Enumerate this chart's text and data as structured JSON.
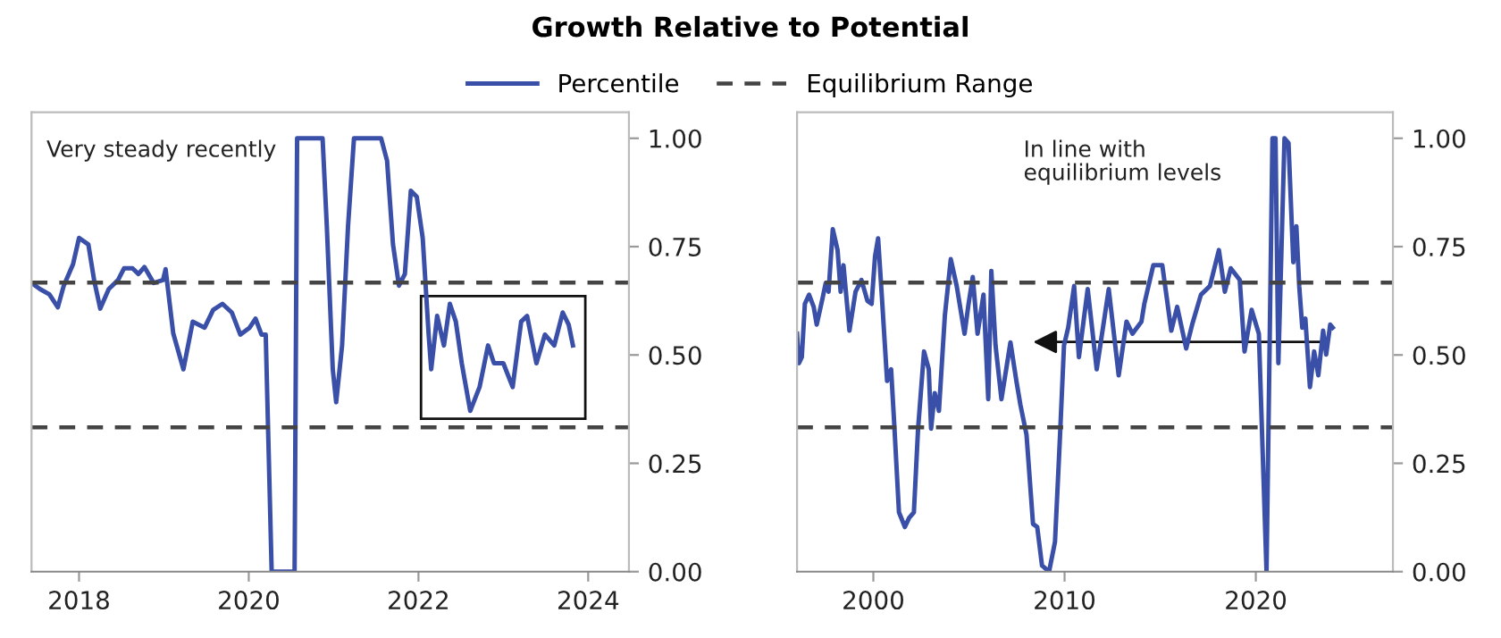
{
  "chart_data": [
    {
      "type": "line",
      "title": "Growth Relative to Potential",
      "legend": "top",
      "grid": false,
      "line_style": "solid",
      "marker": "none",
      "xlim": [
        2017.44,
        2024.48
      ],
      "xticks": [
        2018,
        2020,
        2022,
        2024
      ],
      "ylim": [
        0,
        1.06
      ],
      "yticks": [
        {
          "value": 0,
          "label": "0.00"
        },
        {
          "value": 0.25,
          "label": "0.25"
        },
        {
          "value": 0.5,
          "label": "0.50"
        },
        {
          "value": 0.75,
          "label": "0.75"
        },
        {
          "value": 1,
          "label": "1.00"
        }
      ],
      "annotations": [
        "Very steady recently"
      ],
      "ref_lines": [
        {
          "axis": "y",
          "value": 0.667,
          "label": "Equilibrium Range",
          "color": "#444444",
          "line_style": "dashed"
        },
        {
          "axis": "y",
          "value": 0.333,
          "color": "#444444",
          "line_style": "dashed"
        }
      ],
      "series": [
        {
          "name": "Percentile",
          "color": "#3a4fa8",
          "x": [
            2017.44,
            2017.54,
            2017.65,
            2017.75,
            2017.82,
            2017.93,
            2018.0,
            2018.11,
            2018.18,
            2018.25,
            2018.35,
            2018.46,
            2018.53,
            2018.63,
            2018.7,
            2018.77,
            2018.88,
            2018.99,
            2019.02,
            2019.11,
            2019.23,
            2019.34,
            2019.48,
            2019.58,
            2019.69,
            2019.8,
            2019.9,
            2020.01,
            2020.08,
            2020.15,
            2020.2,
            2020.27,
            2020.54,
            2020.57,
            2020.87,
            2020.92,
            2020.99,
            2021.03,
            2021.1,
            2021.17,
            2021.24,
            2021.56,
            2021.63,
            2021.7,
            2021.77,
            2021.84,
            2021.91,
            2021.98,
            2022.05,
            2022.12,
            2022.15,
            2022.22,
            2022.3,
            2022.37,
            2022.44,
            2022.51,
            2022.61,
            2022.72,
            2022.82,
            2022.89,
            2023.0,
            2023.11,
            2023.21,
            2023.28,
            2023.39,
            2023.49,
            2023.6,
            2023.7,
            2023.77,
            2023.82
          ],
          "values": [
            0.666,
            0.652,
            0.64,
            0.61,
            0.66,
            0.71,
            0.77,
            0.755,
            0.67,
            0.607,
            0.652,
            0.673,
            0.7,
            0.7,
            0.687,
            0.703,
            0.666,
            0.673,
            0.698,
            0.55,
            0.467,
            0.577,
            0.563,
            0.604,
            0.618,
            0.598,
            0.547,
            0.563,
            0.584,
            0.547,
            0.547,
            0,
            0,
            1.0,
            1.0,
            0.797,
            0.467,
            0.391,
            0.522,
            0.797,
            1.0,
            1.0,
            0.948,
            0.755,
            0.66,
            0.687,
            0.879,
            0.865,
            0.77,
            0.547,
            0.467,
            0.59,
            0.522,
            0.618,
            0.577,
            0.481,
            0.371,
            0.426,
            0.522,
            0.481,
            0.481,
            0.426,
            0.577,
            0.59,
            0.481,
            0.547,
            0.522,
            0.598,
            0.57,
            0.522
          ]
        }
      ]
    },
    {
      "type": "line",
      "grid": false,
      "line_style": "solid",
      "marker": "none",
      "xlim": [
        1996.01,
        2027.17
      ],
      "xticks": [
        2000,
        2010,
        2020
      ],
      "ylim": [
        0,
        1.06
      ],
      "yticks": [
        {
          "value": 0,
          "label": "0.00"
        },
        {
          "value": 0.25,
          "label": "0.25"
        },
        {
          "value": 0.5,
          "label": "0.50"
        },
        {
          "value": 0.75,
          "label": "0.75"
        },
        {
          "value": 1,
          "label": "1.00"
        }
      ],
      "annotations": [
        "In line with\nequilibrium levels"
      ],
      "ref_lines": [
        {
          "axis": "y",
          "value": 0.667,
          "color": "#444444",
          "line_style": "dashed"
        },
        {
          "axis": "y",
          "value": 0.333,
          "color": "#444444",
          "line_style": "dashed"
        }
      ],
      "series": [
        {
          "name": "Percentile",
          "color": "#3a4fa8",
          "x": [
            1996.01,
            1996.11,
            1996.26,
            1996.42,
            1996.64,
            1996.88,
            1997.04,
            1997.35,
            1997.51,
            1997.66,
            1997.88,
            1998.13,
            1998.29,
            1998.44,
            1998.75,
            1999.07,
            1999.38,
            1999.69,
            1999.91,
            2000.09,
            2000.25,
            2000.47,
            2000.72,
            2000.93,
            2001.09,
            2001.34,
            2001.65,
            2001.87,
            2002.12,
            2002.34,
            2002.65,
            2002.9,
            2003.02,
            2003.21,
            2003.43,
            2003.74,
            2004.05,
            2004.36,
            2004.77,
            2004.98,
            2005.2,
            2005.45,
            2005.76,
            2006.01,
            2006.17,
            2006.39,
            2006.7,
            2007.17,
            2007.48,
            2007.69,
            2008.01,
            2008.35,
            2008.57,
            2008.82,
            2009.19,
            2009.5,
            2009.75,
            2009.97,
            2010.19,
            2010.5,
            2010.75,
            2011.21,
            2011.68,
            2012.31,
            2012.83,
            2013.24,
            2013.55,
            2014.02,
            2014.17,
            2014.64,
            2015.11,
            2015.58,
            2015.89,
            2016.36,
            2016.67,
            2017.13,
            2017.6,
            2018.07,
            2018.38,
            2018.69,
            2019.16,
            2019.41,
            2019.78,
            2020.16,
            2020.56,
            2020.87,
            2021.03,
            2021.18,
            2021.5,
            2021.71,
            2021.96,
            2022.12,
            2022.27,
            2022.43,
            2022.59,
            2022.83,
            2023.05,
            2023.27,
            2023.52,
            2023.68,
            2023.89,
            2024.02
          ],
          "values": [
            0.549,
            0.481,
            0.495,
            0.618,
            0.639,
            0.611,
            0.57,
            0.632,
            0.666,
            0.646,
            0.79,
            0.742,
            0.646,
            0.707,
            0.556,
            0.646,
            0.673,
            0.625,
            0.618,
            0.728,
            0.769,
            0.618,
            0.44,
            0.467,
            0.343,
            0.137,
            0.103,
            0.124,
            0.137,
            0.33,
            0.508,
            0.467,
            0.33,
            0.412,
            0.371,
            0.591,
            0.721,
            0.659,
            0.549,
            0.618,
            0.68,
            0.549,
            0.639,
            0.398,
            0.694,
            0.522,
            0.398,
            0.529,
            0.44,
            0.385,
            0.316,
            0.11,
            0.103,
            0.014,
            0,
            0.069,
            0.302,
            0.522,
            0.563,
            0.659,
            0.495,
            0.652,
            0.467,
            0.652,
            0.453,
            0.577,
            0.549,
            0.577,
            0.618,
            0.707,
            0.707,
            0.556,
            0.611,
            0.515,
            0.57,
            0.639,
            0.659,
            0.742,
            0.646,
            0.7,
            0.673,
            0.508,
            0.604,
            0.549,
            0,
            1.0,
            1.0,
            0.481,
            1.0,
            0.989,
            0.714,
            0.797,
            0.659,
            0.563,
            0.584,
            0.426,
            0.508,
            0.453,
            0.556,
            0.501,
            0.57,
            0.563
          ]
        }
      ]
    }
  ]
}
